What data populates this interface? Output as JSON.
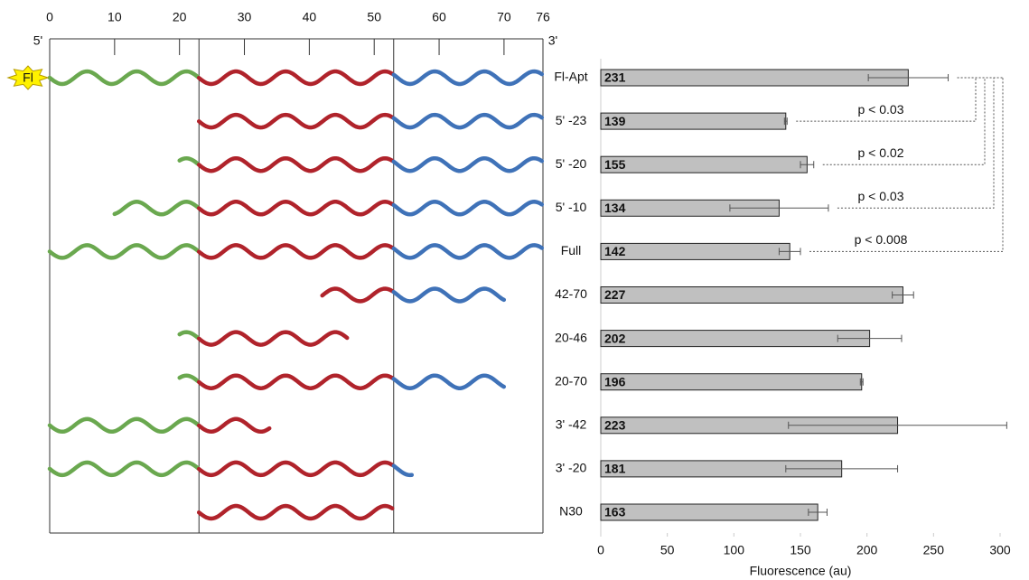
{
  "chart_data": [
    {
      "type": "segments",
      "start_label": "5'",
      "end_label": "3'",
      "tag": "Fl",
      "xlim": [
        0,
        76
      ],
      "xticks": [
        0,
        10,
        20,
        30,
        40,
        50,
        60,
        70,
        76
      ],
      "boundaries": [
        23,
        53
      ],
      "colors": [
        "#6aa84f",
        "#b0232b",
        "#3f72b8"
      ],
      "rows": [
        {
          "start": 0,
          "end": 76
        },
        {
          "start": 23,
          "end": 76
        },
        {
          "start": 20,
          "end": 76
        },
        {
          "start": 10,
          "end": 76
        },
        {
          "start": 0,
          "end": 76
        },
        {
          "start": 42,
          "end": 70
        },
        {
          "start": 20,
          "end": 46
        },
        {
          "start": 20,
          "end": 70
        },
        {
          "start": 0,
          "end": 34
        },
        {
          "start": 0,
          "end": 56
        },
        {
          "start": 23,
          "end": 53
        }
      ]
    },
    {
      "type": "hbar",
      "xlabel": "Fluorescence (au)",
      "categories": [
        "Fl-Apt",
        "5' -23",
        "5' -20",
        "5' -10",
        "Full",
        "42-70",
        "20-46",
        "20-70",
        "3' -42",
        "3' -20",
        "N30"
      ],
      "values": [
        231,
        139,
        155,
        134,
        142,
        227,
        202,
        196,
        223,
        181,
        163
      ],
      "errors": [
        30,
        1,
        5,
        37,
        8,
        8,
        24,
        1,
        82,
        42,
        7
      ],
      "color": "#c0c0c0",
      "xlim": [
        0,
        300
      ],
      "xticks": [
        0,
        50,
        100,
        150,
        200,
        250,
        300
      ],
      "annotations": [
        "p < 0.03",
        "p < 0.02",
        "p < 0.03",
        "p < 0.008"
      ]
    }
  ]
}
